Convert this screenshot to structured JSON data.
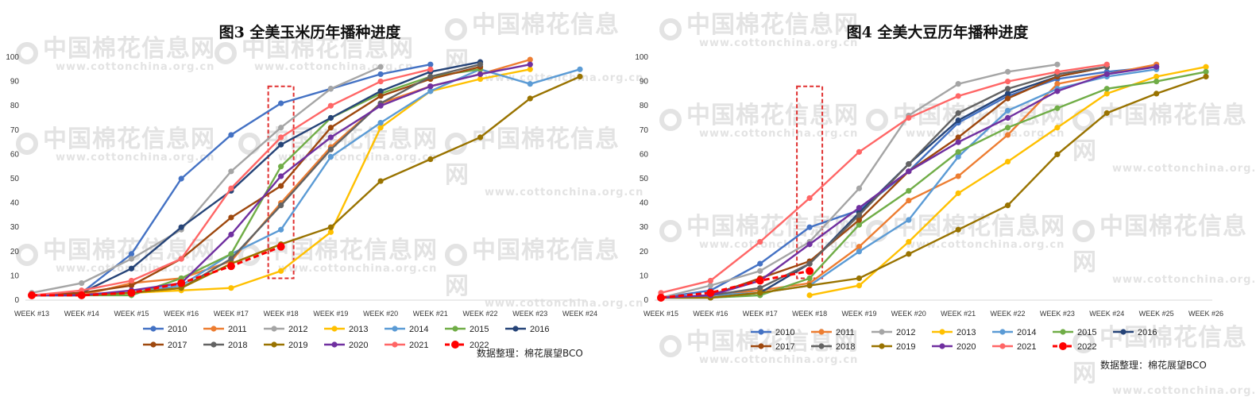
{
  "source_label": "数据整理：棉花展望BCO",
  "watermark": {
    "text": "中国棉花信息网",
    "url": "www.cottonchina.org.cn"
  },
  "chart_data": [
    {
      "type": "line",
      "title": "图3  全美玉米历年播种进度",
      "categories": [
        "WEEK #13",
        "WEEK #14",
        "WEEK #15",
        "WEEK #16",
        "WEEK #17",
        "WEEK #18",
        "WEEK #19",
        "WEEK #20",
        "WEEK #21",
        "WEEK #22",
        "WEEK #23",
        "WEEK #24"
      ],
      "ylim": [
        0,
        100
      ],
      "yticks": [
        0,
        10,
        20,
        30,
        40,
        50,
        60,
        70,
        80,
        90,
        100
      ],
      "highlight_category": "WEEK #18",
      "legend_position": "bottom",
      "series": [
        {
          "name": "2010",
          "color": "#4472c4",
          "values": [
            2,
            3,
            19,
            50,
            68,
            81,
            87,
            93,
            97,
            null,
            null,
            null
          ]
        },
        {
          "name": "2011",
          "color": "#ed7d31",
          "values": [
            2,
            2,
            7,
            9,
            16,
            40,
            63,
            81,
            88,
            93,
            99,
            null
          ]
        },
        {
          "name": "2012",
          "color": "#a5a5a5",
          "values": [
            3,
            7,
            17,
            29,
            53,
            71,
            87,
            96,
            null,
            null,
            null,
            null
          ]
        },
        {
          "name": "2013",
          "color": "#ffc000",
          "values": [
            2,
            2,
            3,
            4,
            5,
            12,
            28,
            71,
            86,
            91,
            95,
            null
          ]
        },
        {
          "name": "2014",
          "color": "#5b9bd5",
          "values": [
            2,
            2,
            3,
            6,
            19,
            29,
            59,
            73,
            86,
            95,
            89,
            95
          ]
        },
        {
          "name": "2015",
          "color": "#70ad47",
          "values": [
            2,
            2,
            2,
            9,
            19,
            55,
            75,
            85,
            92,
            95,
            null,
            null
          ]
        },
        {
          "name": "2016",
          "color": "#264478",
          "values": [
            2,
            3,
            13,
            30,
            45,
            64,
            75,
            86,
            94,
            98,
            null,
            null
          ]
        },
        {
          "name": "2017",
          "color": "#9e480e",
          "values": [
            2,
            3,
            6,
            17,
            34,
            47,
            71,
            84,
            91,
            96,
            null,
            null
          ]
        },
        {
          "name": "2018",
          "color": "#636363",
          "values": [
            2,
            2,
            3,
            5,
            17,
            39,
            62,
            81,
            92,
            97,
            null,
            null
          ]
        },
        {
          "name": "2019",
          "color": "#997300",
          "values": [
            2,
            2,
            3,
            5,
            15,
            23,
            30,
            49,
            58,
            67,
            83,
            92
          ]
        },
        {
          "name": "2020",
          "color": "#7030a0",
          "values": [
            2,
            2,
            4,
            7,
            27,
            51,
            67,
            80,
            88,
            93,
            97,
            null
          ]
        },
        {
          "name": "2021",
          "color": "#ff6666",
          "values": [
            2,
            4,
            8,
            17,
            46,
            67,
            80,
            90,
            95,
            null,
            null,
            null
          ]
        },
        {
          "name": "2022",
          "color": "#ff0000",
          "dashed": true,
          "values": [
            2,
            2,
            3,
            7,
            14,
            22,
            null,
            null,
            null,
            null,
            null,
            null
          ]
        }
      ]
    },
    {
      "type": "line",
      "title": "图4  全美大豆历年播种进度",
      "categories": [
        "WEEK #15",
        "WEEK #16",
        "WEEK #17",
        "WEEK #18",
        "WEEK #19",
        "WEEK #20",
        "WEEK #21",
        "WEEK #22",
        "WEEK #23",
        "WEEK #24",
        "WEEK #25",
        "WEEK #26"
      ],
      "ylim": [
        0,
        100
      ],
      "yticks": [
        0,
        10,
        20,
        30,
        40,
        50,
        60,
        70,
        80,
        90,
        100
      ],
      "highlight_category": "WEEK #18",
      "legend_position": "bottom",
      "series": [
        {
          "name": "2010",
          "color": "#4472c4",
          "values": [
            1,
            4,
            15,
            30,
            37,
            53,
            73,
            84,
            91,
            94,
            96,
            null
          ]
        },
        {
          "name": "2011",
          "color": "#ed7d31",
          "values": [
            1,
            2,
            4,
            7,
            22,
            41,
            51,
            68,
            89,
            93,
            97,
            null
          ]
        },
        {
          "name": "2012",
          "color": "#a5a5a5",
          "values": [
            1,
            6,
            12,
            24,
            46,
            76,
            89,
            94,
            97,
            null,
            null,
            null
          ]
        },
        {
          "name": "2013",
          "color": "#ffc000",
          "values": [
            null,
            null,
            null,
            2,
            6,
            24,
            44,
            57,
            71,
            85,
            92,
            96
          ]
        },
        {
          "name": "2014",
          "color": "#5b9bd5",
          "values": [
            1,
            2,
            3,
            6,
            20,
            33,
            59,
            78,
            87,
            92,
            95,
            null
          ]
        },
        {
          "name": "2015",
          "color": "#70ad47",
          "values": [
            1,
            1,
            2,
            9,
            31,
            45,
            61,
            71,
            79,
            87,
            90,
            94
          ]
        },
        {
          "name": "2016",
          "color": "#264478",
          "values": [
            1,
            1,
            3,
            15,
            36,
            56,
            74,
            85,
            92,
            96,
            null,
            null
          ]
        },
        {
          "name": "2017",
          "color": "#9e480e",
          "values": [
            1,
            2,
            9,
            16,
            33,
            53,
            67,
            83,
            92,
            96,
            null,
            null
          ]
        },
        {
          "name": "2018",
          "color": "#636363",
          "values": [
            1,
            2,
            5,
            15,
            35,
            56,
            77,
            87,
            93,
            96,
            null,
            null
          ]
        },
        {
          "name": "2019",
          "color": "#997300",
          "values": [
            1,
            1,
            3,
            6,
            9,
            19,
            29,
            39,
            60,
            77,
            85,
            92
          ]
        },
        {
          "name": "2020",
          "color": "#7030a0",
          "values": [
            1,
            2,
            8,
            23,
            38,
            53,
            65,
            75,
            86,
            93,
            96,
            null
          ]
        },
        {
          "name": "2021",
          "color": "#ff6666",
          "values": [
            3,
            8,
            24,
            42,
            61,
            75,
            84,
            90,
            94,
            97,
            null,
            null
          ]
        },
        {
          "name": "2022",
          "color": "#ff0000",
          "dashed": true,
          "values": [
            1,
            3,
            8,
            12,
            null,
            null,
            null,
            null,
            null,
            null,
            null,
            null
          ]
        }
      ]
    }
  ]
}
